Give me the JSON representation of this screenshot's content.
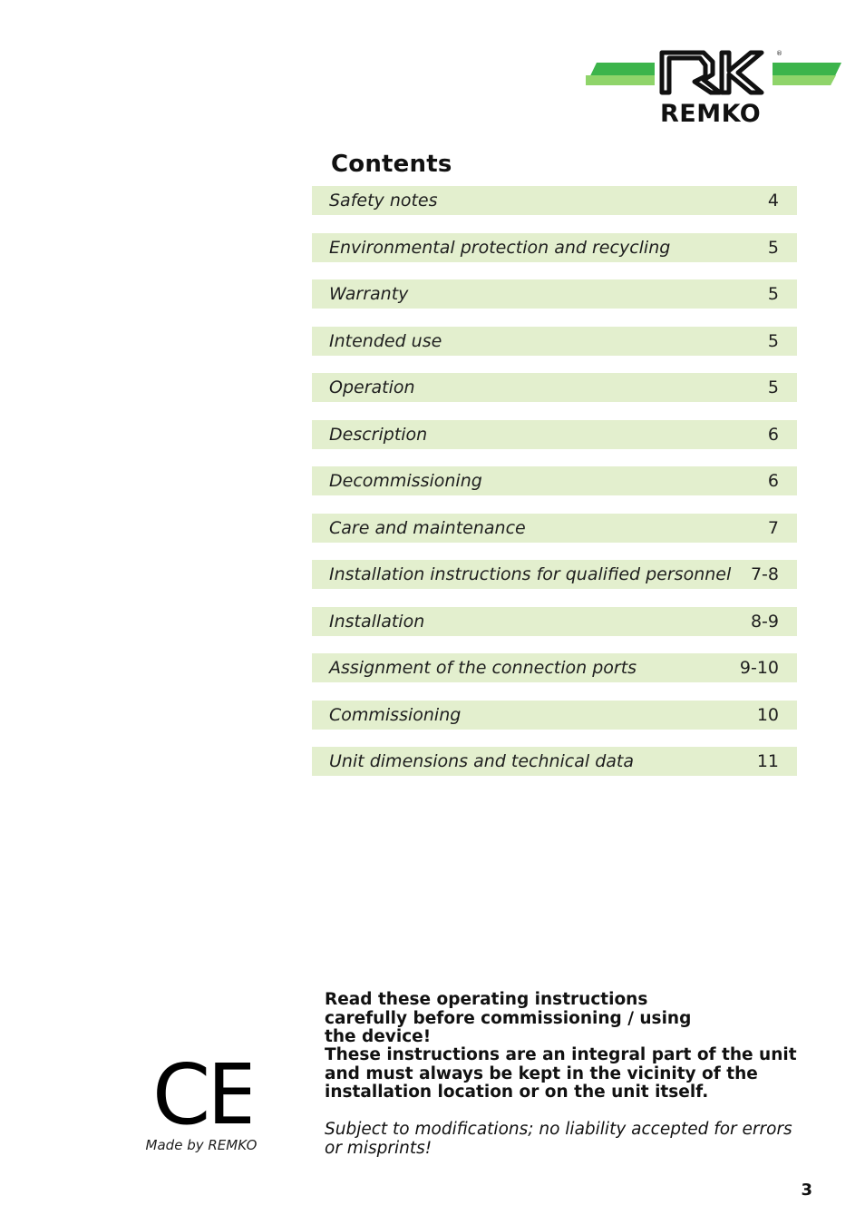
{
  "logo": {
    "text": "REMKO",
    "registered_mark": "®",
    "colors": {
      "green_dark": "#3cb44b",
      "green_light": "#8fd46a",
      "ink": "#111111"
    }
  },
  "contents": {
    "title": "Contents",
    "row_color": "#e3efce",
    "items": [
      {
        "label": "Safety notes",
        "page": "4"
      },
      {
        "label": "Environmental protection and recycling",
        "page": "5"
      },
      {
        "label": "Warranty",
        "page": "5"
      },
      {
        "label": "Intended use",
        "page": "5"
      },
      {
        "label": "Operation",
        "page": "5"
      },
      {
        "label": "Description",
        "page": "6"
      },
      {
        "label": "Decommissioning",
        "page": "6"
      },
      {
        "label": "Care and maintenance",
        "page": "7"
      },
      {
        "label": "Installation instructions for qualified personnel",
        "page": "7-8"
      },
      {
        "label": "Installation",
        "page": "8-9"
      },
      {
        "label": "Assignment of the connection ports",
        "page": "9-10"
      },
      {
        "label": "Commissioning",
        "page": "10"
      },
      {
        "label": "Unit dimensions and technical data",
        "page": "11"
      }
    ]
  },
  "notices": {
    "read_carefully": "Read these operating instructions carefully before commissioning / using the device!",
    "integral_part": "These instructions are an integral part of the unit and must always be kept in the vicinity of the installation location or on the unit itself.",
    "disclaimer": "Subject to modifications; no liability accepted for errors or misprints!"
  },
  "ce": {
    "mark": "CE",
    "made_by": "Made by REMKO"
  },
  "page_number": "3"
}
